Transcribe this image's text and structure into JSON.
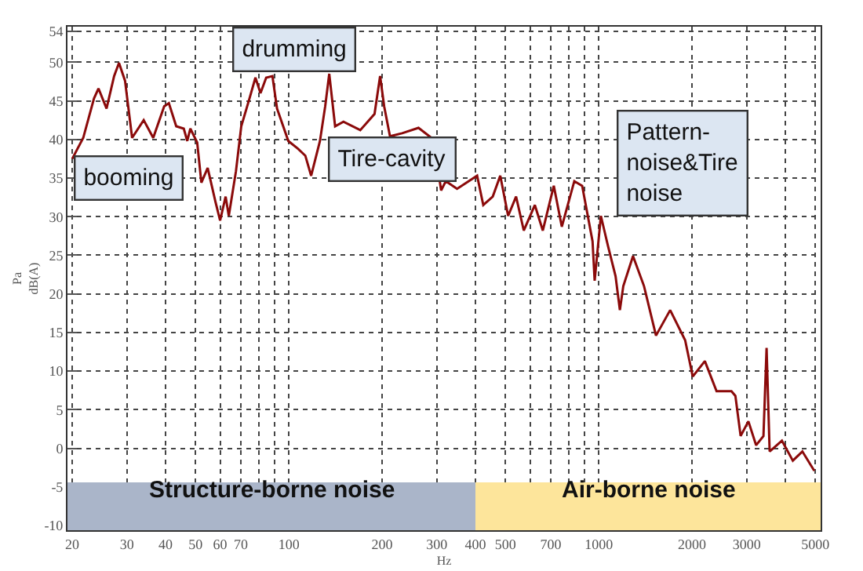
{
  "chart_data": {
    "type": "line",
    "xlabel": "Hz",
    "ylabel": "Pa\ndB(A)",
    "log": "x",
    "xlim": [
      19.3,
      5200
    ],
    "ylim": [
      -10.6,
      54.6
    ],
    "xticks": [
      20,
      30,
      40,
      50,
      60,
      70,
      {
        "value": 80,
        "label": null
      },
      {
        "value": 90,
        "label": null
      },
      100,
      200,
      300,
      400,
      500,
      {
        "value": 600,
        "label": null
      },
      700,
      {
        "value": 800,
        "label": null
      },
      {
        "value": 900,
        "label": null
      },
      1000,
      2000,
      3000,
      {
        "value": 4000,
        "label": null
      },
      5000
    ],
    "yticks": [
      -10,
      -5,
      0,
      5,
      10,
      15,
      20,
      25,
      30,
      35,
      40,
      45,
      50,
      54
    ],
    "grid": true,
    "marker": "none",
    "line_style": "solid",
    "series": [
      {
        "color": "#8b0a0a",
        "x": [
          20,
          21.7,
          23.5,
          24.3,
          25.8,
          27.3,
          28.3,
          29.6,
          31.2,
          34,
          36.5,
          39.6,
          41,
          43.3,
          45.8,
          47,
          48.1,
          50.6,
          52.2,
          54.7,
          57.9,
          60,
          62.5,
          64,
          67.5,
          70.2,
          73,
          75,
          78,
          81,
          84.5,
          88.5,
          91.6,
          99.6,
          107,
          113,
          118,
          126,
          131,
          135,
          141,
          150,
          170,
          189,
          197,
          203,
          212,
          232,
          262,
          293,
          310,
          321,
          349,
          405,
          424,
          455,
          481,
          510,
          541,
          573,
          622,
          660,
          716,
          760,
          834,
          884,
          955,
          970,
          1016,
          1071,
          1133,
          1170,
          1200,
          1290,
          1400,
          1530,
          1700,
          1900,
          2010,
          2200,
          2400,
          2680,
          2760,
          2870,
          3040,
          3220,
          3400,
          3480,
          3560,
          3900,
          4230,
          4540,
          4960
        ],
        "values": [
          37.5,
          40.2,
          45.3,
          46.6,
          44,
          48.2,
          49.9,
          47.6,
          40.2,
          42.5,
          40.2,
          44.3,
          44.7,
          41.7,
          41.4,
          39.8,
          41.4,
          39.6,
          34.4,
          36.3,
          32,
          29.5,
          32.6,
          30.1,
          35.9,
          41.7,
          44,
          45.6,
          48,
          46,
          48,
          48.2,
          44,
          39.8,
          38.8,
          37.9,
          35.3,
          39.8,
          44.3,
          48.5,
          41.7,
          42.3,
          41.2,
          43.3,
          48.2,
          44.3,
          40.4,
          40.8,
          41.5,
          40,
          33.4,
          34.6,
          33.6,
          35.3,
          31.5,
          32.6,
          35.3,
          30.1,
          32.6,
          28.2,
          31.5,
          28.2,
          34,
          28.7,
          34.6,
          34,
          26.8,
          21.7,
          30.1,
          26.2,
          22.3,
          17.9,
          21,
          24.9,
          21,
          14.6,
          17.9,
          14,
          9.3,
          11.3,
          7.4,
          7.4,
          6.8,
          1.6,
          3.5,
          0.4,
          1.6,
          13,
          -0.4,
          1,
          -1.6,
          -0.4,
          -2.9
        ]
      }
    ],
    "bands": [
      {
        "axis": "x",
        "from": 19.3,
        "to": 400,
        "label": "Structure-borne noise",
        "color": "#aab5c9"
      },
      {
        "axis": "x",
        "from": 400,
        "to": 5200,
        "label": "Air-borne noise",
        "color": "#fde59b"
      }
    ],
    "annotations": [
      "booming",
      "drumming",
      "Tire-cavity",
      "Pattern-\nnoise&Tire\nnoise"
    ]
  }
}
